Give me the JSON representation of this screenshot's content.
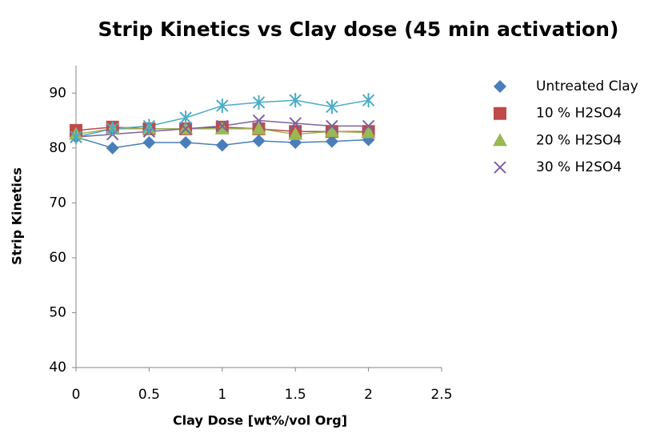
{
  "chart_data": {
    "type": "scatter",
    "title": "Strip Kinetics vs Clay dose (45 min activation)",
    "x_label": "Clay Dose [wt%/vol Org]",
    "y_label": "Strip Kinetics",
    "x": [
      0,
      0.25,
      0.5,
      0.75,
      1,
      1.25,
      1.5,
      1.75,
      2
    ],
    "series": [
      {
        "name": "Untreated Clay",
        "color": "#4a7ebb",
        "marker": "diamond",
        "values": [
          82,
          80,
          81,
          81,
          80.5,
          81.3,
          81,
          81.2,
          81.5
        ]
      },
      {
        "name": "10 % H2SO4",
        "color": "#be4b48",
        "marker": "square",
        "values": [
          83.2,
          83.8,
          83.5,
          83.5,
          83.8,
          83.5,
          83,
          83,
          83
        ]
      },
      {
        "name": "20 % H2SO4",
        "color": "#98b954",
        "marker": "triangle",
        "values": [
          82.5,
          83.5,
          83.5,
          83.5,
          83.5,
          83.5,
          82.5,
          83,
          82.8
        ]
      },
      {
        "name": "30 % H2SO4",
        "color": "#7d60a0",
        "marker": "x",
        "values": [
          82,
          82.5,
          83,
          83.5,
          84,
          85,
          84.5,
          84,
          84
        ]
      },
      {
        "color": "#4bacc6",
        "marker": "asterisk",
        "values": [
          82,
          83.5,
          84,
          85.5,
          87.7,
          88.3,
          88.7,
          87.5,
          88.7
        ]
      }
    ],
    "xlim": [
      0,
      2.5
    ],
    "xticks": [
      0,
      0.5,
      1,
      1.5,
      2,
      2.5
    ],
    "ylim": [
      40,
      95
    ],
    "yticks": [
      40,
      50,
      60,
      70,
      80,
      90
    ],
    "grid": false,
    "legend": "right"
  }
}
